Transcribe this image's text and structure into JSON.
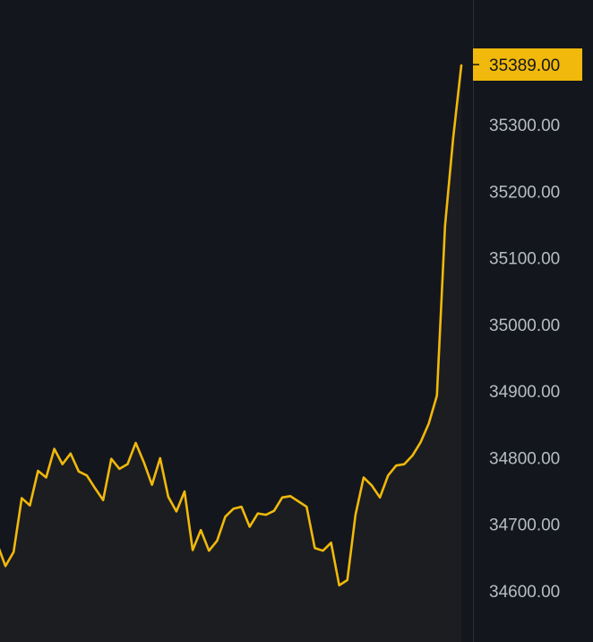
{
  "colors": {
    "background": "#14161d",
    "line": "#f0b90b",
    "area": "#1c1d20",
    "axis_divider": "#2b2f36",
    "tick_text": "#b7bdc6",
    "price_tag_bg": "#f0b90b",
    "price_tag_text": "#14161d"
  },
  "price_tag": {
    "label": "35389.00"
  },
  "chart_data": {
    "type": "area",
    "title": "",
    "xlabel": "",
    "ylabel": "",
    "grid": false,
    "y_axis_position": "right",
    "ylim": [
      34580,
      35480
    ],
    "y_ticks": [
      {
        "value": 35300,
        "label": "35300.00"
      },
      {
        "value": 35200,
        "label": "35200.00"
      },
      {
        "value": 35100,
        "label": "35100.00"
      },
      {
        "value": 35000,
        "label": "35000.00"
      },
      {
        "value": 34900,
        "label": "34900.00"
      },
      {
        "value": 34800,
        "label": "34800.00"
      },
      {
        "value": 34700,
        "label": "34700.00"
      },
      {
        "value": 34600,
        "label": "34600.00"
      }
    ],
    "series": [
      {
        "values": [
          34670,
          34637,
          34658,
          34739,
          34728,
          34780,
          34770,
          34813,
          34790,
          34806,
          34779,
          34773,
          34754,
          34736,
          34798,
          34783,
          34790,
          34822,
          34793,
          34759,
          34799,
          34741,
          34719,
          34749,
          34661,
          34691,
          34660,
          34675,
          34711,
          34723,
          34726,
          34696,
          34716,
          34714,
          34720,
          34740,
          34742,
          34734,
          34726,
          34664,
          34660,
          34672,
          34608,
          34616,
          34714,
          34770,
          34758,
          34740,
          34773,
          34788,
          34790,
          34803,
          34823,
          34851,
          34893,
          35148,
          35280,
          35389
        ]
      }
    ]
  }
}
